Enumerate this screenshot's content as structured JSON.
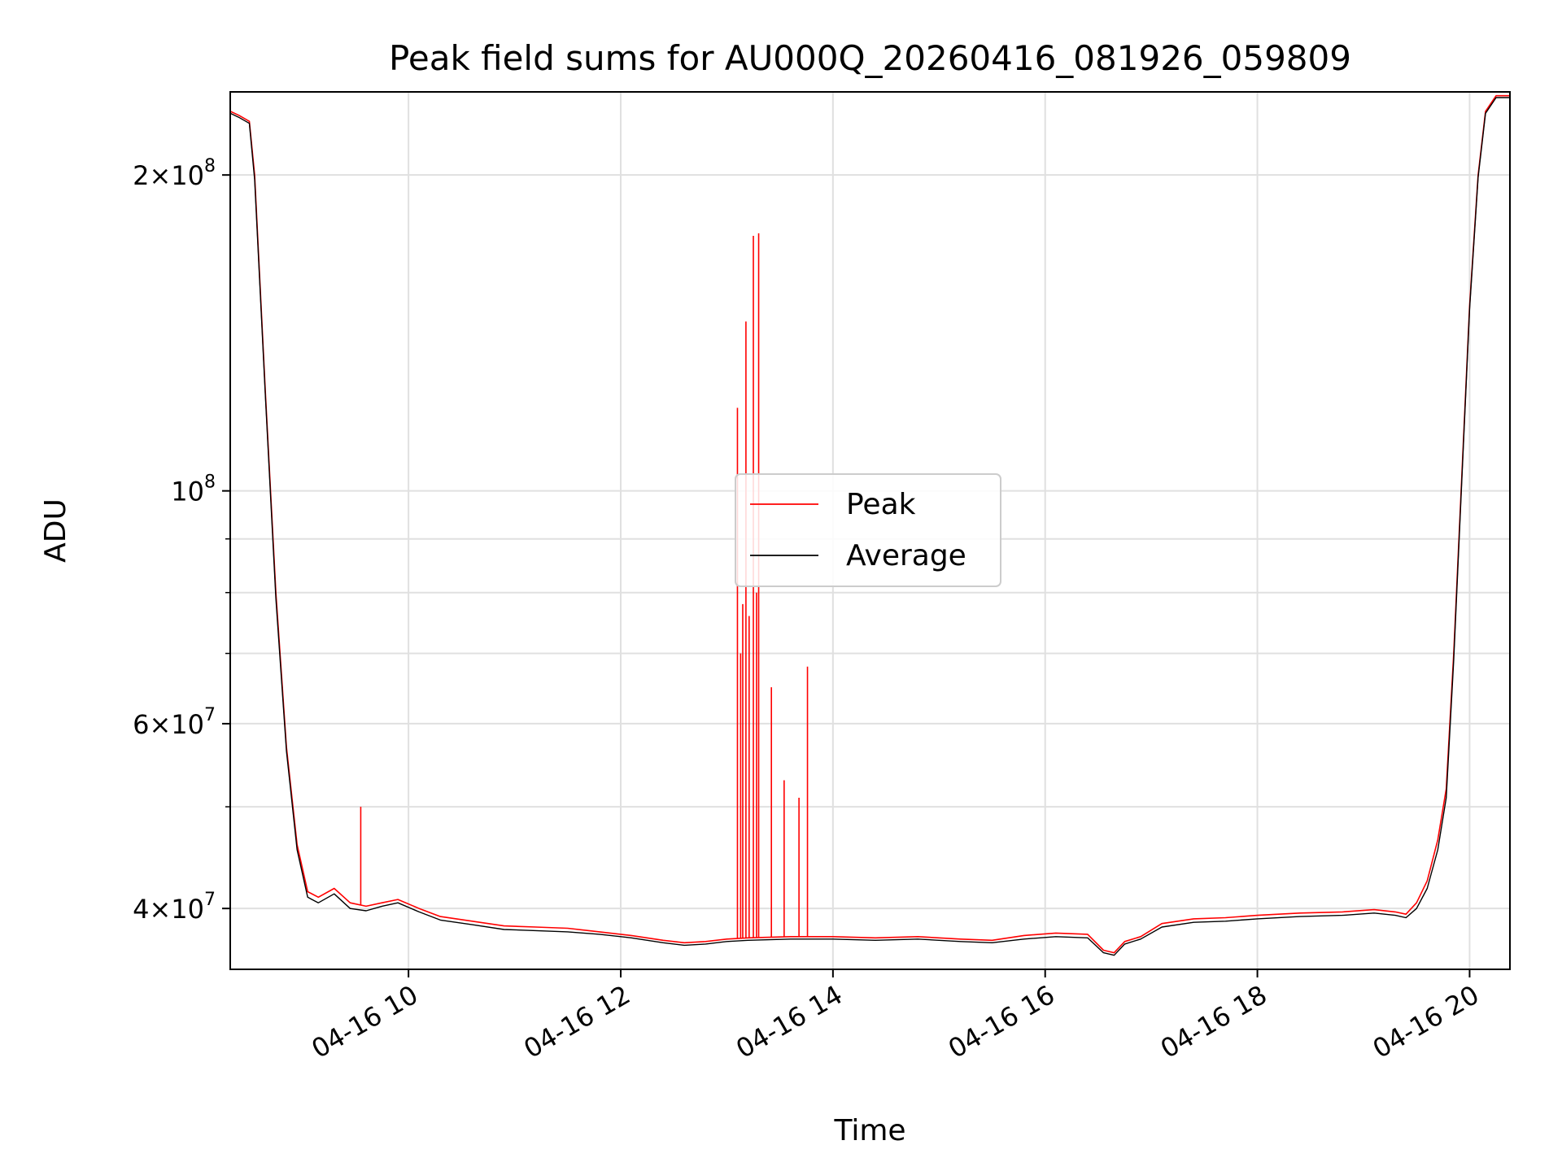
{
  "chart_data": {
    "type": "line",
    "title": "Peak field sums for AU000Q_20260416_081926_059809",
    "xlabel": "Time",
    "ylabel": "ADU",
    "y_scale": "log",
    "x_unit": "hours on 2026-04-16",
    "xlim": [
      8.32,
      20.38
    ],
    "ylim": [
      35000000,
      240000000
    ],
    "grid": true,
    "legend_position": "center",
    "x_ticks": [
      {
        "value": 10,
        "label": "04-16 10"
      },
      {
        "value": 12,
        "label": "04-16 12"
      },
      {
        "value": 14,
        "label": "04-16 14"
      },
      {
        "value": 16,
        "label": "04-16 16"
      },
      {
        "value": 18,
        "label": "04-16 18"
      },
      {
        "value": 20,
        "label": "04-16 20"
      }
    ],
    "y_ticks": [
      {
        "value": 40000000,
        "base": "4",
        "exp": "7"
      },
      {
        "value": 60000000,
        "base": "6",
        "exp": "7"
      },
      {
        "value": 100000000,
        "base": "",
        "exp": "8"
      },
      {
        "value": 200000000,
        "base": "2",
        "exp": "8"
      }
    ],
    "y_minor_ticks": [
      50000000,
      70000000,
      80000000,
      90000000
    ],
    "series": [
      {
        "name": "Peak",
        "color": "#ff0000",
        "x": [
          8.32,
          8.4,
          8.5,
          8.55,
          8.65,
          8.75,
          8.85,
          8.95,
          9.05,
          9.15,
          9.3,
          9.45,
          9.6,
          9.75,
          9.9,
          10.1,
          10.3,
          10.6,
          10.9,
          11.2,
          11.5,
          11.8,
          12.1,
          12.4,
          12.6,
          12.8,
          13.0,
          13.2,
          13.6,
          14.0,
          14.4,
          14.8,
          15.2,
          15.5,
          15.8,
          16.1,
          16.4,
          16.55,
          16.65,
          16.75,
          16.9,
          17.1,
          17.4,
          17.7,
          18.0,
          18.4,
          18.8,
          19.1,
          19.3,
          19.4,
          19.5,
          19.6,
          19.7,
          19.78,
          19.85,
          19.92,
          20.0,
          20.08,
          20.15,
          20.25,
          20.38
        ],
        "y": [
          230000000,
          228000000,
          225000000,
          200000000,
          125000000,
          80000000,
          57000000,
          46000000,
          41500000,
          41000000,
          41800000,
          40500000,
          40200000,
          40500000,
          40800000,
          40000000,
          39300000,
          38900000,
          38500000,
          38400000,
          38300000,
          38000000,
          37700000,
          37300000,
          37100000,
          37200000,
          37400000,
          37500000,
          37600000,
          37600000,
          37500000,
          37600000,
          37400000,
          37300000,
          37700000,
          37900000,
          37800000,
          36500000,
          36300000,
          37200000,
          37600000,
          38700000,
          39100000,
          39200000,
          39400000,
          39600000,
          39700000,
          39900000,
          39700000,
          39500000,
          40500000,
          42500000,
          46500000,
          52000000,
          70000000,
          100000000,
          150000000,
          200000000,
          230000000,
          238000000,
          238000000
        ],
        "spikes": [
          {
            "x": 9.55,
            "y": 50000000
          },
          {
            "x": 13.1,
            "y": 120000000
          },
          {
            "x": 13.13,
            "y": 70000000
          },
          {
            "x": 13.15,
            "y": 78000000
          },
          {
            "x": 13.18,
            "y": 145000000
          },
          {
            "x": 13.21,
            "y": 76000000
          },
          {
            "x": 13.25,
            "y": 175000000
          },
          {
            "x": 13.28,
            "y": 80000000
          },
          {
            "x": 13.3,
            "y": 176000000
          },
          {
            "x": 13.42,
            "y": 65000000
          },
          {
            "x": 13.54,
            "y": 53000000
          },
          {
            "x": 13.68,
            "y": 51000000
          },
          {
            "x": 13.76,
            "y": 68000000
          }
        ]
      },
      {
        "name": "Average",
        "color": "#000000",
        "x": [
          8.32,
          8.4,
          8.5,
          8.55,
          8.65,
          8.75,
          8.85,
          8.95,
          9.05,
          9.15,
          9.3,
          9.45,
          9.6,
          9.75,
          9.9,
          10.1,
          10.3,
          10.6,
          10.9,
          11.2,
          11.5,
          11.8,
          12.1,
          12.4,
          12.6,
          12.8,
          13.0,
          13.2,
          13.6,
          14.0,
          14.4,
          14.8,
          15.2,
          15.5,
          15.8,
          16.1,
          16.4,
          16.55,
          16.65,
          16.75,
          16.9,
          17.1,
          17.4,
          17.7,
          18.0,
          18.4,
          18.8,
          19.1,
          19.3,
          19.4,
          19.5,
          19.6,
          19.7,
          19.78,
          19.85,
          19.92,
          20.0,
          20.08,
          20.15,
          20.25,
          20.38
        ],
        "y": [
          229000000,
          227000000,
          224000000,
          198000000,
          124000000,
          79000000,
          56500000,
          45500000,
          41000000,
          40500000,
          41300000,
          40000000,
          39800000,
          40200000,
          40500000,
          39700000,
          39000000,
          38600000,
          38200000,
          38100000,
          38000000,
          37800000,
          37500000,
          37100000,
          36900000,
          37000000,
          37200000,
          37300000,
          37400000,
          37400000,
          37300000,
          37400000,
          37200000,
          37100000,
          37400000,
          37600000,
          37500000,
          36300000,
          36100000,
          37000000,
          37400000,
          38400000,
          38800000,
          38900000,
          39100000,
          39300000,
          39400000,
          39600000,
          39400000,
          39200000,
          40000000,
          41800000,
          45500000,
          51000000,
          69000000,
          99000000,
          149000000,
          199000000,
          229000000,
          237000000,
          237000000
        ]
      }
    ]
  }
}
